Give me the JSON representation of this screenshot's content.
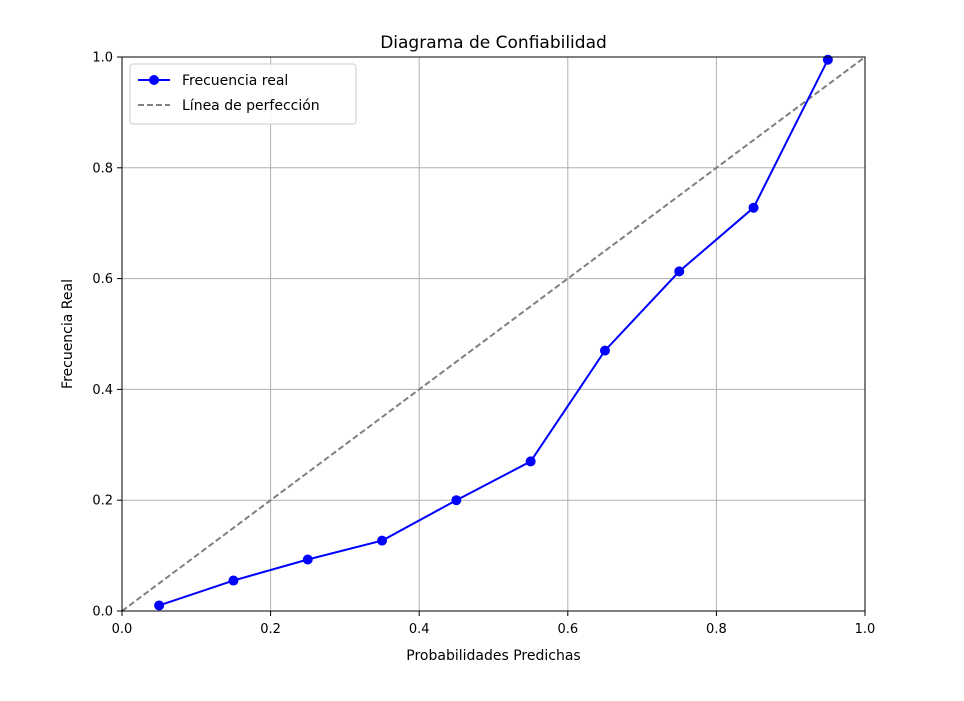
{
  "chart_data": {
    "type": "line",
    "title": "Diagrama de Confiabilidad",
    "xlabel": "Probabilidades Predichas",
    "ylabel": "Frecuencia Real",
    "xlim": [
      0.0,
      1.0
    ],
    "ylim": [
      0.0,
      1.0
    ],
    "xticks": [
      "0.0",
      "0.2",
      "0.4",
      "0.6",
      "0.8",
      "1.0"
    ],
    "yticks": [
      "0.0",
      "0.2",
      "0.4",
      "0.6",
      "0.8",
      "1.0"
    ],
    "grid": true,
    "legend_position": "top-left",
    "series": [
      {
        "name": "Frecuencia real",
        "style": "solid-with-markers",
        "color": "#0000ff",
        "x": [
          0.05,
          0.15,
          0.25,
          0.35,
          0.45,
          0.55,
          0.65,
          0.75,
          0.85,
          0.95
        ],
        "y": [
          0.01,
          0.055,
          0.093,
          0.127,
          0.2,
          0.27,
          0.47,
          0.613,
          0.728,
          0.995
        ]
      },
      {
        "name": "Línea de perfección",
        "style": "dashed",
        "color": "#808080",
        "x": [
          0.0,
          1.0
        ],
        "y": [
          0.0,
          1.0
        ]
      }
    ]
  }
}
